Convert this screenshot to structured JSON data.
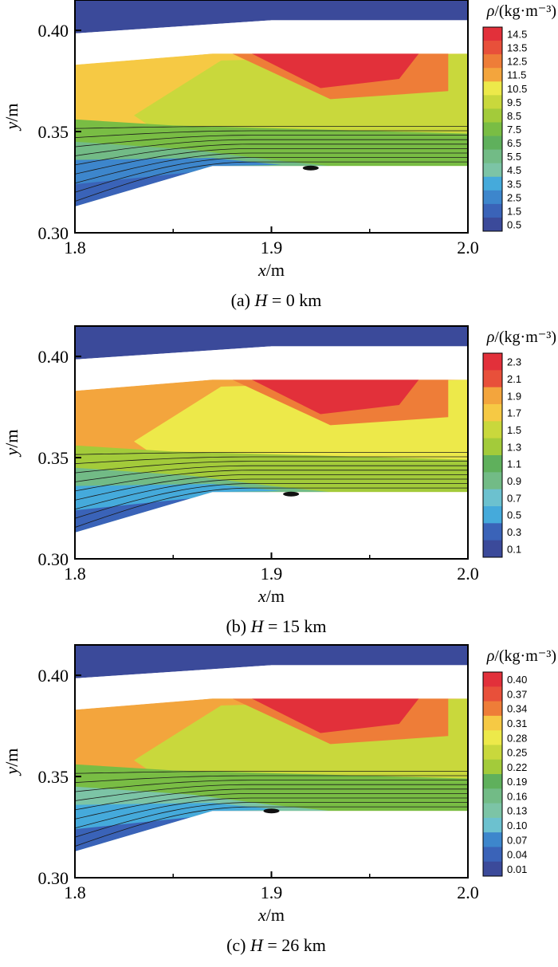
{
  "chart_data": [
    {
      "type": "contour",
      "panel_label": "(a)",
      "caption_var": "H",
      "caption_rest": " = 0 km",
      "title": "(a) H = 0 km",
      "xlabel_var": "x",
      "xlabel_unit": "/m",
      "ylabel_var": "y",
      "ylabel_unit": "/m",
      "xlim": [
        1.8,
        2.0
      ],
      "ylim": [
        0.3,
        0.415
      ],
      "xticks": [
        "1.8",
        "1.9",
        "2.0"
      ],
      "xtick_values": [
        1.8,
        1.9,
        2.0
      ],
      "yticks": [
        "0.30",
        "0.35",
        "0.40"
      ],
      "ytick_values": [
        0.3,
        0.35,
        0.4
      ],
      "colorbar_title_var": "ρ",
      "colorbar_title_unit": "/(kg·m⁻³)",
      "colorbar_levels": [
        "14.5",
        "13.5",
        "12.5",
        "11.5",
        "10.5",
        "9.5",
        "8.5",
        "7.5",
        "6.5",
        "5.5",
        "4.5",
        "3.5",
        "2.5",
        "1.5",
        "0.5"
      ],
      "level_min": 0.5,
      "level_max": 14.5,
      "region_values": {
        "top_wall": 0.7,
        "upper_freestream": 10.8,
        "shock_layer": 9.0,
        "hot_core": 14.3,
        "hot_core_ring": 12.6,
        "mid_green": 7.6,
        "boundary_band": 5.5,
        "low_core": 2.4,
        "near_wall": 1.4
      },
      "sep_point_x": 1.92,
      "sep_point_y": 0.332
    },
    {
      "type": "contour",
      "panel_label": "(b)",
      "caption_var": "H",
      "caption_rest": " = 15 km",
      "title": "(b) H = 15 km",
      "xlabel_var": "x",
      "xlabel_unit": "/m",
      "ylabel_var": "y",
      "ylabel_unit": "/m",
      "xlim": [
        1.8,
        2.0
      ],
      "ylim": [
        0.3,
        0.415
      ],
      "xticks": [
        "1.8",
        "1.9",
        "2.0"
      ],
      "xtick_values": [
        1.8,
        1.9,
        2.0
      ],
      "yticks": [
        "0.30",
        "0.35",
        "0.40"
      ],
      "ytick_values": [
        0.3,
        0.35,
        0.4
      ],
      "colorbar_title_var": "ρ",
      "colorbar_title_unit": "/(kg·m⁻³)",
      "colorbar_levels": [
        "2.3",
        "2.1",
        "1.9",
        "1.7",
        "1.5",
        "1.3",
        "1.1",
        "0.9",
        "0.7",
        "0.5",
        "0.3",
        "0.1"
      ],
      "level_min": 0.1,
      "level_max": 2.3,
      "region_values": {
        "top_wall": 0.15,
        "upper_freestream": 1.85,
        "shock_layer": 1.55,
        "hot_core": 2.28,
        "hot_core_ring": 2.05,
        "mid_green": 1.3,
        "boundary_band": 0.95,
        "low_core": 0.45,
        "near_wall": 0.25
      },
      "sep_point_x": 1.91,
      "sep_point_y": 0.332
    },
    {
      "type": "contour",
      "panel_label": "(c)",
      "caption_var": "H",
      "caption_rest": " = 26 km",
      "title": "(c) H = 26 km",
      "xlabel_var": "x",
      "xlabel_unit": "/m",
      "ylabel_var": "y",
      "ylabel_unit": "/m",
      "xlim": [
        1.8,
        2.0
      ],
      "ylim": [
        0.3,
        0.415
      ],
      "xticks": [
        "1.8",
        "1.9",
        "2.0"
      ],
      "xtick_values": [
        1.8,
        1.9,
        2.0
      ],
      "yticks": [
        "0.30",
        "0.35",
        "0.40"
      ],
      "ytick_values": [
        0.3,
        0.35,
        0.4
      ],
      "colorbar_title_var": "ρ",
      "colorbar_title_unit": "/(kg·m⁻³)",
      "colorbar_levels": [
        "0.40",
        "0.37",
        "0.34",
        "0.31",
        "0.28",
        "0.25",
        "0.22",
        "0.19",
        "0.16",
        "0.13",
        "0.10",
        "0.07",
        "0.04",
        "0.01"
      ],
      "level_min": 0.01,
      "level_max": 0.4,
      "region_values": {
        "top_wall": 0.02,
        "upper_freestream": 0.33,
        "shock_layer": 0.25,
        "hot_core": 0.395,
        "hot_core_ring": 0.36,
        "mid_green": 0.2,
        "boundary_band": 0.14,
        "low_core": 0.08,
        "near_wall": 0.04
      },
      "sep_point_x": 1.9,
      "sep_point_y": 0.333
    }
  ]
}
